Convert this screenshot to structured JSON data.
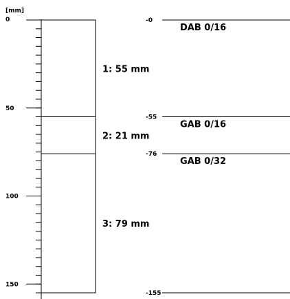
{
  "axis": {
    "unit": "[mm]",
    "max_depth": 155,
    "ticks": [
      0,
      50,
      100,
      150
    ],
    "minor_step": 5
  },
  "layers": [
    {
      "label": "1: 55 mm",
      "top": 0,
      "bottom": 55,
      "material": "DAB 0/16"
    },
    {
      "label": "2: 21 mm",
      "top": 55,
      "bottom": 76,
      "material": "GAB 0/16"
    },
    {
      "label": "3: 79 mm",
      "top": 76,
      "bottom": 155,
      "material": "GAB 0/32"
    }
  ],
  "depth_marks": [
    "-0",
    "-55",
    "-76",
    "-155"
  ]
}
